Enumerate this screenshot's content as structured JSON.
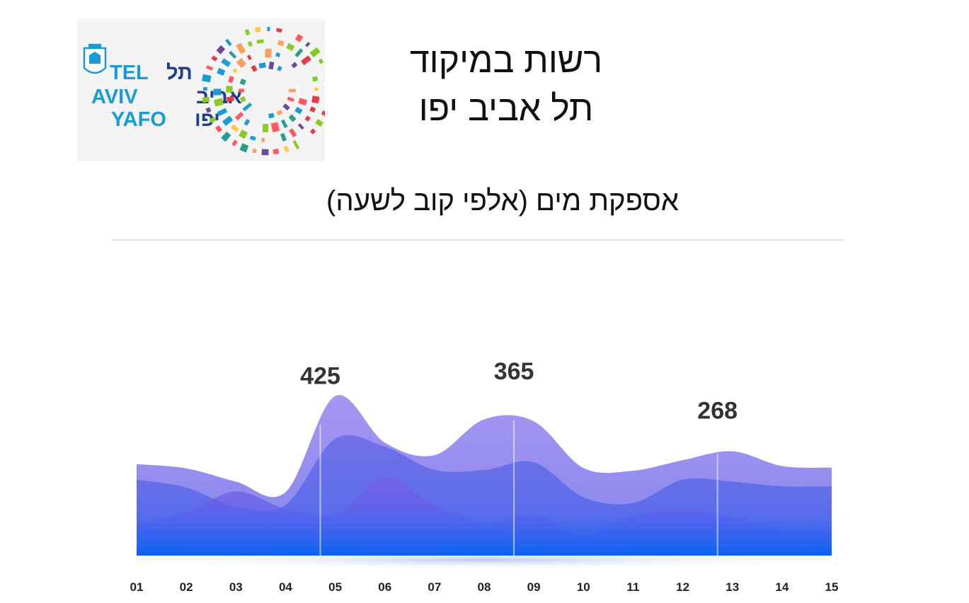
{
  "header": {
    "title_line1": "רשות במיקוד",
    "title_line2": "תל אביב יפו",
    "subtitle": "אספקת מים (אלפי קוב לשעה)"
  },
  "logo": {
    "latin_lines": [
      "TEL",
      "AVIV",
      "YAFO"
    ],
    "hebrew_lines": [
      "תל",
      "אביב",
      "יפו"
    ],
    "emblem_icon": "city-emblem-icon"
  },
  "colors": {
    "series_top": "#9a8cef",
    "series_mid": "#6f74ea",
    "series_low": "#5a63e8",
    "base": "#1a5ff0",
    "logo_blue": "#1b9ad6",
    "logo_navy": "#1f3f8a"
  },
  "chart_data": {
    "type": "area",
    "categories": [
      "01",
      "02",
      "03",
      "04",
      "05",
      "06",
      "07",
      "08",
      "09",
      "10",
      "11",
      "12",
      "13",
      "14",
      "15"
    ],
    "series": [
      {
        "values": [
          235,
          224,
          190,
          163,
          410,
          290,
          258,
          350,
          345,
          225,
          218,
          245,
          268,
          230,
          226
        ]
      },
      {
        "values": [
          195,
          175,
          125,
          130,
          300,
          280,
          220,
          220,
          240,
          150,
          135,
          195,
          190,
          178,
          178
        ]
      },
      {
        "values": [
          80,
          110,
          165,
          120,
          105,
          200,
          130,
          82,
          103,
          56,
          101,
          115,
          98,
          67,
          63
        ]
      }
    ],
    "annotations": [
      {
        "x": "04.7",
        "label": "425"
      },
      {
        "x": "08.6",
        "label": "365"
      },
      {
        "x": "12.7",
        "label": "268"
      }
    ]
  }
}
